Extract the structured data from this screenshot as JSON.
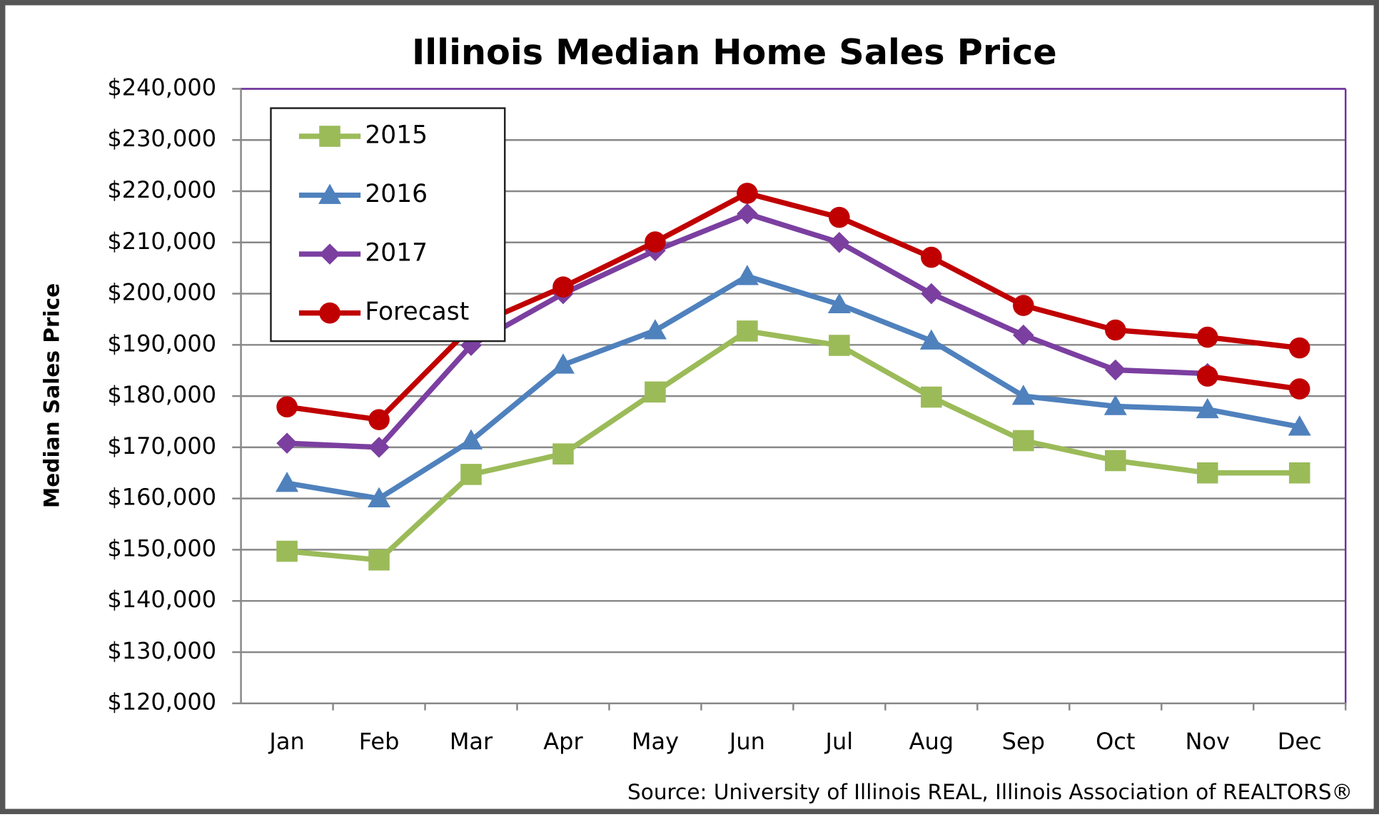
{
  "chart_data": {
    "type": "line",
    "title": "Illinois Median Home Sales Price",
    "y_label": "Median  Sales  Price",
    "source": "Source: University of Illinois REAL, Illinois Association of REALTORS®",
    "categories": [
      "Jan",
      "Feb",
      "Mar",
      "Apr",
      "May",
      "Jun",
      "Jul",
      "Aug",
      "Sep",
      "Oct",
      "Nov",
      "Dec"
    ],
    "series": [
      {
        "name": "2015",
        "color": "#9bbb59",
        "marker": "square",
        "values": [
          149700,
          148000,
          164700,
          168700,
          180800,
          192700,
          189900,
          179800,
          171300,
          167400,
          165000,
          165000
        ]
      },
      {
        "name": "2016",
        "color": "#4f81bd",
        "marker": "triangle",
        "values": [
          163000,
          160000,
          171300,
          186100,
          192800,
          203400,
          197900,
          190800,
          180000,
          178000,
          177400,
          174000
        ]
      },
      {
        "name": "2017",
        "color": "#7b3fa0",
        "marker": "diamond",
        "values": [
          170800,
          170000,
          189900,
          200000,
          208400,
          215600,
          210000,
          200000,
          191900,
          185100,
          184400,
          null
        ]
      },
      {
        "name": "Forecast",
        "color": "#c00000",
        "marker": "circle",
        "values": [
          177900,
          175400,
          193500,
          201300,
          210100,
          219600,
          214900,
          207100,
          197700,
          192900,
          191500,
          189400
        ]
      },
      {
        "color": "#c00000",
        "marker": "circle",
        "values": [
          null,
          null,
          null,
          null,
          null,
          null,
          null,
          null,
          null,
          null,
          183900,
          181400
        ]
      }
    ],
    "ylim": [
      120000,
      240000
    ],
    "yticks": [
      {
        "value": 120000,
        "label": "$120,000"
      },
      {
        "value": 130000,
        "label": "$130,000"
      },
      {
        "value": 140000,
        "label": "$140,000"
      },
      {
        "value": 150000,
        "label": "$150,000"
      },
      {
        "value": 160000,
        "label": "$160,000"
      },
      {
        "value": 170000,
        "label": "$170,000"
      },
      {
        "value": 180000,
        "label": "$180,000"
      },
      {
        "value": 190000,
        "label": "$190,000"
      },
      {
        "value": 200000,
        "label": "$200,000"
      },
      {
        "value": 210000,
        "label": "$210,000"
      },
      {
        "value": 220000,
        "label": "$220,000"
      },
      {
        "value": 230000,
        "label": "$230,000"
      },
      {
        "value": 240000,
        "label": "$240,000"
      }
    ],
    "grid": true,
    "legend": "upper left"
  }
}
